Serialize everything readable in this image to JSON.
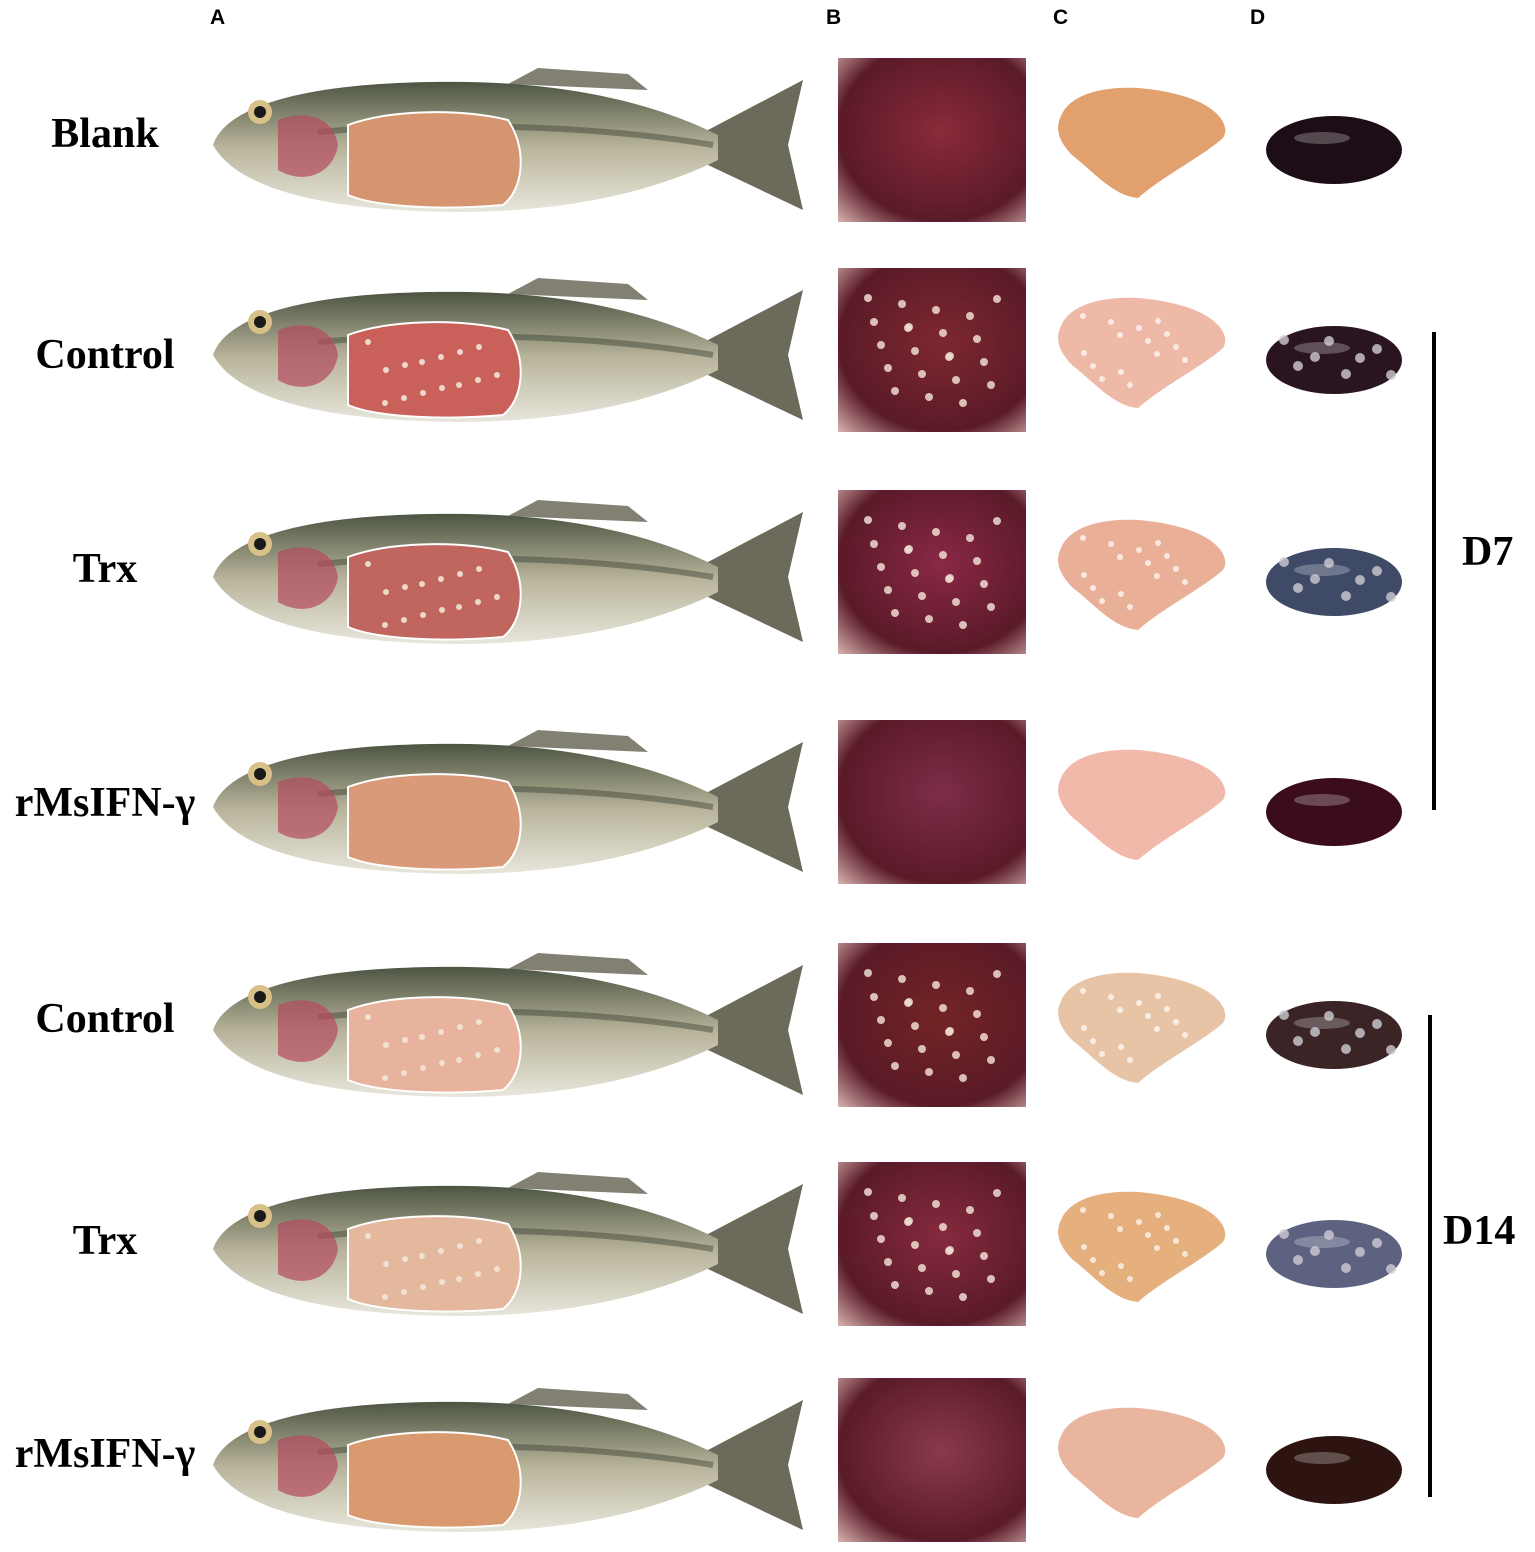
{
  "panels": {
    "a": "A",
    "b": "B",
    "c": "C",
    "d": "D"
  },
  "rows": [
    {
      "label": "Blank",
      "liver": "#e2a06f",
      "spleen": "#1c0d16",
      "cavity": "#8a2a3a",
      "flesh": "#d49570",
      "spots": false
    },
    {
      "label": "Control",
      "liver": "#eeb9a6",
      "spleen": "#2a1420",
      "cavity": "#7e2830",
      "flesh": "#c9605a",
      "spots": true
    },
    {
      "label": "Trx",
      "liver": "#e9b097",
      "spleen": "#3e4a66",
      "cavity": "#8a2846",
      "flesh": "#c0665e",
      "spots": true
    },
    {
      "label": "rMsIFN-γ",
      "liver": "#f0b9aa",
      "spleen": "#3a0c1c",
      "cavity": "#7e2d48",
      "flesh": "#d99a7a",
      "spots": false
    },
    {
      "label": "Control",
      "liver": "#e7c4a5",
      "spleen": "#3a2426",
      "cavity": "#732424",
      "flesh": "#e8b39c",
      "spots": true
    },
    {
      "label": "Trx",
      "liver": "#e6b07e",
      "spleen": "#5c6280",
      "cavity": "#862a3e",
      "flesh": "#e3b89c",
      "spots": true
    },
    {
      "label": "rMsIFN-γ",
      "liver": "#eab59e",
      "spleen": "#2e1410",
      "cavity": "#8a3a4a",
      "flesh": "#d89a6e",
      "spots": false
    }
  ],
  "groups": [
    {
      "label": "D7"
    },
    {
      "label": "D14"
    }
  ],
  "colors": {
    "fish_back": "#4c5442",
    "fish_side": "#b8b49a",
    "fish_belly": "#e8e6dc",
    "fin": "#6c6a5a"
  }
}
